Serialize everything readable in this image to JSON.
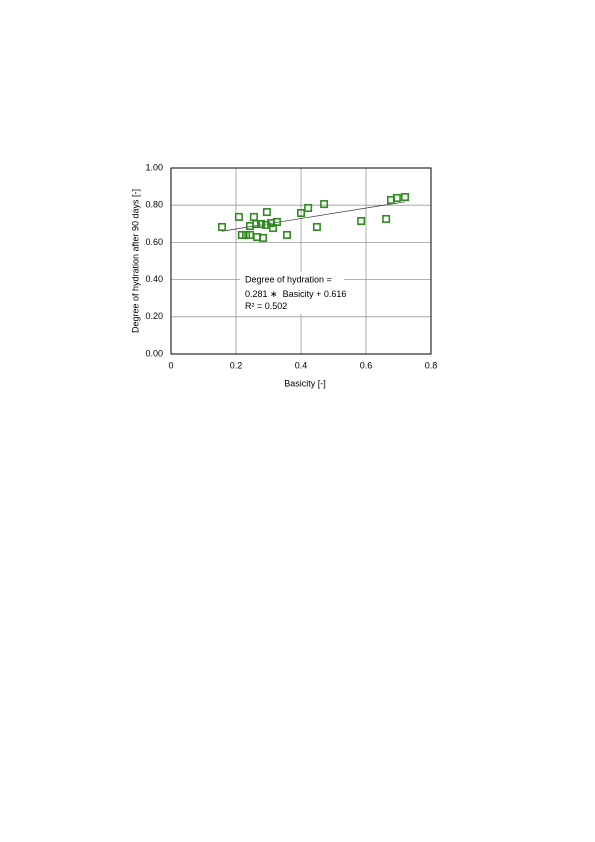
{
  "chart_data": {
    "type": "scatter",
    "x_label": "Basicity [-]",
    "y_label": "Degree of hydration after 90 days  [-]",
    "series": [
      {
        "name": "Degree of hydration",
        "color": "#2e8b1e",
        "x": [
          0.157,
          0.209,
          0.218,
          0.231,
          0.243,
          0.243,
          0.255,
          0.262,
          0.265,
          0.277,
          0.283,
          0.292,
          0.295,
          0.308,
          0.314,
          0.326,
          0.357,
          0.4,
          0.422,
          0.449,
          0.471,
          0.585,
          0.662,
          0.677,
          0.695,
          0.72
        ],
        "values": [
          0.683,
          0.737,
          0.64,
          0.64,
          0.64,
          0.688,
          0.737,
          0.699,
          0.629,
          0.699,
          0.624,
          0.694,
          0.763,
          0.704,
          0.677,
          0.71,
          0.64,
          0.758,
          0.785,
          0.683,
          0.806,
          0.715,
          0.726,
          0.828,
          0.839,
          0.844
        ]
      }
    ],
    "trendline": {
      "slope": 0.281,
      "intercept": 0.616,
      "r2": 0.502
    },
    "annotation": {
      "line1": "Degree of hydration =",
      "mid": " ∗  Basicity + ",
      "r2_prefix": "R² = "
    },
    "xlim": [
      0,
      0.8
    ],
    "xticks": [
      0,
      0.2,
      0.4,
      0.6,
      0.8
    ],
    "ylim": [
      0,
      1
    ],
    "yticks": [
      {
        "value": 0,
        "label": "0.00"
      },
      {
        "value": 0.2,
        "label": "0.20"
      },
      {
        "value": 0.4,
        "label": "0.40"
      },
      {
        "value": 0.6,
        "label": "0.60"
      },
      {
        "value": 0.8,
        "label": "0.80"
      },
      {
        "value": 1,
        "label": "1.00"
      }
    ],
    "grid": true
  }
}
